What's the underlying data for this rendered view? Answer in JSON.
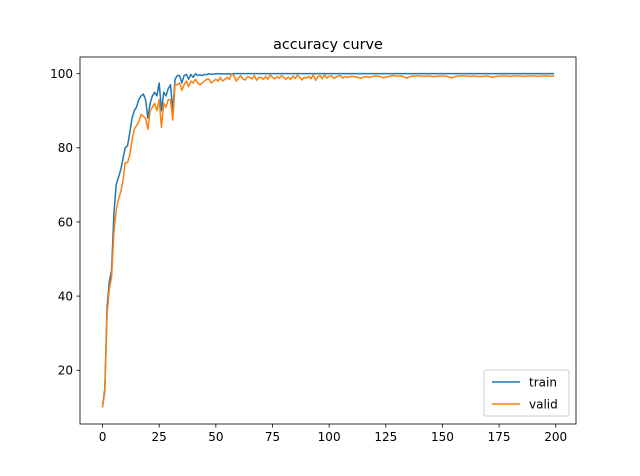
{
  "chart_data": {
    "type": "line",
    "title": "accuracy curve",
    "xlabel": "",
    "ylabel": "",
    "xlim": [
      -9.95,
      208.95
    ],
    "ylim": [
      5.5,
      104.5
    ],
    "xticks": [
      0,
      25,
      50,
      75,
      100,
      125,
      150,
      175,
      200
    ],
    "yticks": [
      20,
      40,
      60,
      80,
      100
    ],
    "grid": false,
    "legend_position": "lower-right",
    "series": [
      {
        "name": "train",
        "color": "#1f77b4",
        "points": [
          [
            0,
            10.2
          ],
          [
            1,
            15
          ],
          [
            2,
            37
          ],
          [
            3,
            44
          ],
          [
            4,
            47
          ],
          [
            5,
            62
          ],
          [
            6,
            70
          ],
          [
            7,
            72
          ],
          [
            8,
            74
          ],
          [
            9,
            77
          ],
          [
            10,
            80
          ],
          [
            11,
            80.5
          ],
          [
            12,
            84
          ],
          [
            13,
            88
          ],
          [
            14,
            90
          ],
          [
            15,
            91
          ],
          [
            16,
            93
          ],
          [
            17,
            94
          ],
          [
            18,
            94.5
          ],
          [
            19,
            93
          ],
          [
            20,
            88
          ],
          [
            21,
            92
          ],
          [
            22,
            94
          ],
          [
            23,
            95
          ],
          [
            24,
            94
          ],
          [
            25,
            97.5
          ],
          [
            26,
            90
          ],
          [
            27,
            95
          ],
          [
            28,
            94
          ],
          [
            29,
            96
          ],
          [
            30,
            97
          ],
          [
            31,
            90
          ],
          [
            32,
            98.5
          ],
          [
            33,
            99.5
          ],
          [
            34,
            99.5
          ],
          [
            35,
            97.5
          ],
          [
            36,
            99.5
          ],
          [
            37,
            99.8
          ],
          [
            38,
            98.5
          ],
          [
            39,
            99.8
          ],
          [
            40,
            99
          ],
          [
            41,
            100
          ],
          [
            42,
            99.5
          ],
          [
            43,
            99.7
          ],
          [
            44,
            99.5
          ],
          [
            45,
            99.8
          ],
          [
            46,
            99.7
          ],
          [
            47,
            100
          ],
          [
            48,
            99.8
          ],
          [
            49,
            99.9
          ],
          [
            50,
            100
          ],
          [
            55,
            99.9
          ],
          [
            58,
            100
          ],
          [
            60,
            100
          ],
          [
            70,
            100
          ],
          [
            80,
            100
          ],
          [
            100,
            100
          ],
          [
            120,
            100
          ],
          [
            150,
            100
          ],
          [
            180,
            100
          ],
          [
            199,
            100
          ]
        ]
      },
      {
        "name": "valid",
        "color": "#ff7f0e",
        "points": [
          [
            0,
            10.2
          ],
          [
            1,
            14
          ],
          [
            2,
            35
          ],
          [
            3,
            42
          ],
          [
            4,
            45
          ],
          [
            5,
            57
          ],
          [
            6,
            63
          ],
          [
            7,
            66
          ],
          [
            8,
            68
          ],
          [
            9,
            71
          ],
          [
            10,
            76
          ],
          [
            11,
            76
          ],
          [
            12,
            78
          ],
          [
            13,
            82
          ],
          [
            14,
            85
          ],
          [
            15,
            86
          ],
          [
            16,
            87
          ],
          [
            17,
            89
          ],
          [
            18,
            88.5
          ],
          [
            19,
            88
          ],
          [
            20,
            85
          ],
          [
            21,
            90
          ],
          [
            22,
            91
          ],
          [
            23,
            92
          ],
          [
            24,
            90
          ],
          [
            25,
            93
          ],
          [
            26,
            85.5
          ],
          [
            27,
            92
          ],
          [
            28,
            91
          ],
          [
            29,
            93
          ],
          [
            30,
            93
          ],
          [
            31,
            87.5
          ],
          [
            32,
            97
          ],
          [
            33,
            97
          ],
          [
            34,
            97.5
          ],
          [
            35,
            95.5
          ],
          [
            36,
            97
          ],
          [
            37,
            98
          ],
          [
            38,
            96.5
          ],
          [
            39,
            98
          ],
          [
            40,
            97.5
          ],
          [
            41,
            98.5
          ],
          [
            42,
            97.5
          ],
          [
            43,
            97
          ],
          [
            44,
            97.5
          ],
          [
            45,
            98
          ],
          [
            46,
            98.5
          ],
          [
            47,
            98.5
          ],
          [
            48,
            97.5
          ],
          [
            49,
            98
          ],
          [
            50,
            98.5
          ],
          [
            51,
            98
          ],
          [
            52,
            99
          ],
          [
            53,
            98
          ],
          [
            54,
            98.5
          ],
          [
            55,
            99
          ],
          [
            56,
            98.5
          ],
          [
            57,
            100
          ],
          [
            58,
            99.5
          ],
          [
            59,
            98
          ],
          [
            60,
            98.8
          ],
          [
            61,
            99.5
          ],
          [
            62,
            98.5
          ],
          [
            63,
            98.3
          ],
          [
            64,
            99.2
          ],
          [
            65,
            99
          ],
          [
            66,
            98.6
          ],
          [
            67,
            99.5
          ],
          [
            68,
            98.2
          ],
          [
            69,
            99
          ],
          [
            70,
            99
          ],
          [
            71,
            98.5
          ],
          [
            72,
            99.3
          ],
          [
            73,
            98.5
          ],
          [
            74,
            99.7
          ],
          [
            75,
            99
          ],
          [
            76,
            98.6
          ],
          [
            77,
            99.2
          ],
          [
            78,
            98.8
          ],
          [
            79,
            99.5
          ],
          [
            80,
            99
          ],
          [
            81,
            98.5
          ],
          [
            82,
            99.1
          ],
          [
            83,
            98.4
          ],
          [
            84,
            99.4
          ],
          [
            85,
            98.7
          ],
          [
            86,
            99.6
          ],
          [
            87,
            99.1
          ],
          [
            88,
            98.3
          ],
          [
            89,
            99
          ],
          [
            90,
            98.8
          ],
          [
            91,
            99.3
          ],
          [
            92,
            98.6
          ],
          [
            93,
            99.8
          ],
          [
            94,
            98.2
          ],
          [
            95,
            99.2
          ],
          [
            96,
            99.5
          ],
          [
            97,
            98.6
          ],
          [
            98,
            99.7
          ],
          [
            99,
            98.8
          ],
          [
            100,
            99.3
          ],
          [
            101,
            99.5
          ],
          [
            102,
            98.7
          ],
          [
            103,
            99.1
          ],
          [
            104,
            99.4
          ],
          [
            105,
            99.5
          ],
          [
            106,
            98.8
          ],
          [
            107,
            99.2
          ],
          [
            108,
            99
          ],
          [
            110,
            99.3
          ],
          [
            112,
            99.1
          ],
          [
            114,
            98.8
          ],
          [
            116,
            99.2
          ],
          [
            118,
            99
          ],
          [
            120,
            99.4
          ],
          [
            122,
            99.3
          ],
          [
            124,
            98.9
          ],
          [
            126,
            99.2
          ],
          [
            128,
            99.5
          ],
          [
            130,
            99.3
          ],
          [
            132,
            99.4
          ],
          [
            134,
            98.8
          ],
          [
            136,
            99.3
          ],
          [
            138,
            99.4
          ],
          [
            140,
            99.4
          ],
          [
            142,
            99.3
          ],
          [
            144,
            99.4
          ],
          [
            146,
            99.2
          ],
          [
            148,
            99.3
          ],
          [
            150,
            99.4
          ],
          [
            152,
            99.3
          ],
          [
            154,
            98.9
          ],
          [
            156,
            99.3
          ],
          [
            158,
            99.4
          ],
          [
            160,
            99.4
          ],
          [
            162,
            99.3
          ],
          [
            164,
            99.4
          ],
          [
            166,
            99.2
          ],
          [
            168,
            99.3
          ],
          [
            170,
            99.4
          ],
          [
            172,
            99
          ],
          [
            174,
            99.3
          ],
          [
            176,
            99.4
          ],
          [
            178,
            99.4
          ],
          [
            180,
            99.3
          ],
          [
            182,
            99.4
          ],
          [
            184,
            99.4
          ],
          [
            186,
            99.3
          ],
          [
            188,
            99.4
          ],
          [
            190,
            99.4
          ],
          [
            192,
            99.3
          ],
          [
            194,
            99.4
          ],
          [
            196,
            99.4
          ],
          [
            198,
            99.3
          ],
          [
            199,
            99.4
          ]
        ]
      }
    ]
  }
}
